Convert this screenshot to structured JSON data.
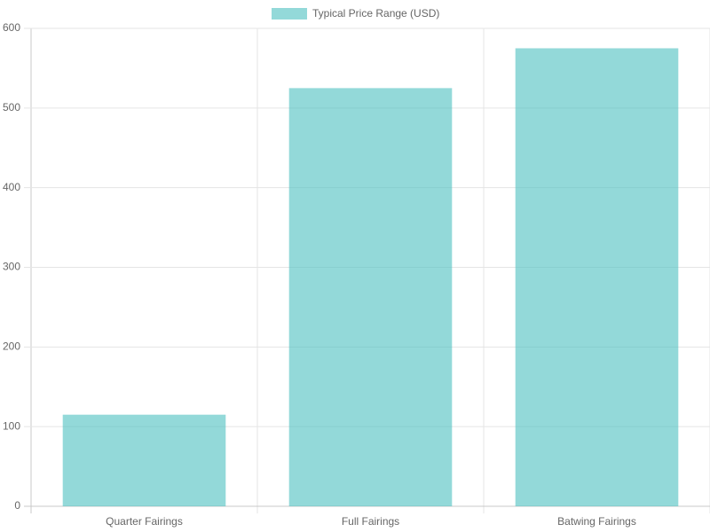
{
  "chart_data": {
    "type": "bar",
    "categories": [
      "Quarter Fairings",
      "Full Fairings",
      "Batwing Fairings"
    ],
    "series": [
      {
        "name": "Typical Price Range (USD)",
        "color": "rgba(75, 192, 192, 0.6)",
        "values": [
          115,
          525,
          575
        ]
      }
    ],
    "ylim": [
      0,
      600
    ],
    "yticks": [
      0,
      100,
      200,
      300,
      400,
      500,
      600
    ],
    "grid": true,
    "legend": "top"
  }
}
